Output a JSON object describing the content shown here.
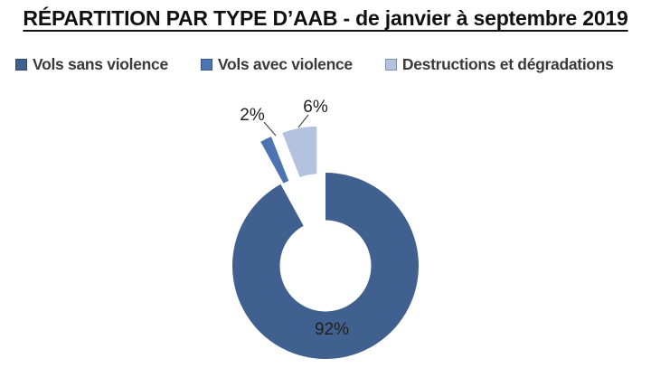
{
  "title": "RÉPARTITION PAR TYPE D’AAB - de janvier à septembre 2019",
  "legend": {
    "items": [
      {
        "label": "Vols sans violence",
        "color": "#40618F"
      },
      {
        "label": "Vols avec violence",
        "color": "#4C73B2"
      },
      {
        "label": "Destructions et dégradations",
        "color": "#B2C2DF"
      }
    ]
  },
  "chart_data": {
    "type": "pie",
    "subtype": "doughnut",
    "title": "RÉPARTITION PAR TYPE D’AAB - de janvier à septembre 2019",
    "categories": [
      "Vols sans violence",
      "Vols avec violence",
      "Destructions et dégradations"
    ],
    "values": [
      92,
      2,
      6
    ],
    "unit": "%",
    "data_labels": [
      "92%",
      "2%",
      "6%"
    ],
    "colors": [
      "#40618F",
      "#4C73B2",
      "#B2C2DF"
    ],
    "exploded": [
      false,
      true,
      true
    ],
    "start_angle_deg": 0,
    "direction": "clockwise",
    "hole_ratio": 0.49,
    "legend_position": "top",
    "leader_line_color": "#4a4a4a",
    "background": "#ffffff"
  }
}
